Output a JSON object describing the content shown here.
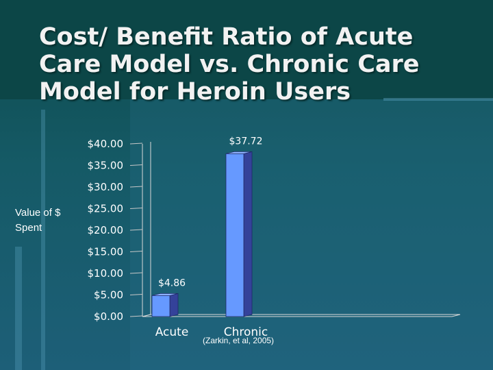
{
  "slide": {
    "title": "Cost/ Benefit Ratio of Acute Care Model vs. Chronic Care Model for Heroin Users",
    "y_axis_label": "Value of $ Spent",
    "source": "(Zarkin, et al, 2005)"
  },
  "chart_data": {
    "type": "bar",
    "categories": [
      "Acute",
      "Chronic"
    ],
    "values": [
      4.86,
      37.72
    ],
    "data_labels": [
      "$4.86",
      "$37.72"
    ],
    "y_ticks": [
      "$0.00",
      "$5.00",
      "$10.00",
      "$15.00",
      "$20.00",
      "$25.00",
      "$30.00",
      "$35.00",
      "$40.00"
    ],
    "ylabel": "Value of $ Spent",
    "ylim": [
      0,
      40
    ],
    "grid": false,
    "bar_color": "#6699ff",
    "bar_side_color": "#34429a"
  }
}
